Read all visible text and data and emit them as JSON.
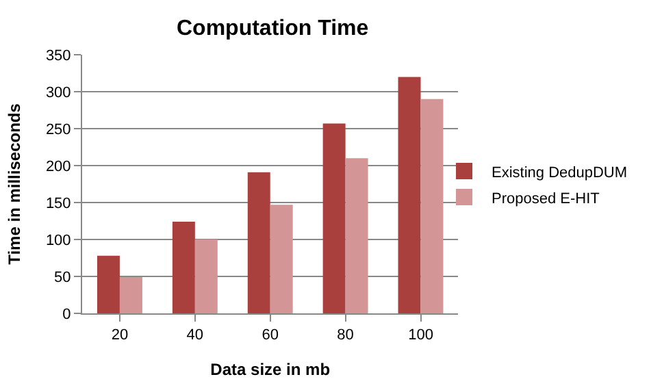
{
  "chart_data": {
    "type": "bar",
    "title": "Computation Time",
    "xlabel": "Data size in mb",
    "ylabel": "Time in milliseconds",
    "categories": [
      "20",
      "40",
      "60",
      "80",
      "100"
    ],
    "series": [
      {
        "name": "Existing DedupDUM",
        "color": "#a9403e",
        "values": [
          78,
          124,
          191,
          257,
          320
        ]
      },
      {
        "name": "Proposed E-HIT",
        "color": "#d49596",
        "values": [
          49,
          100,
          147,
          210,
          290
        ]
      }
    ],
    "ylim": [
      0,
      350
    ],
    "yticks": [
      0,
      50,
      100,
      150,
      200,
      250,
      300,
      350
    ],
    "grid": "y",
    "legend": "right"
  }
}
